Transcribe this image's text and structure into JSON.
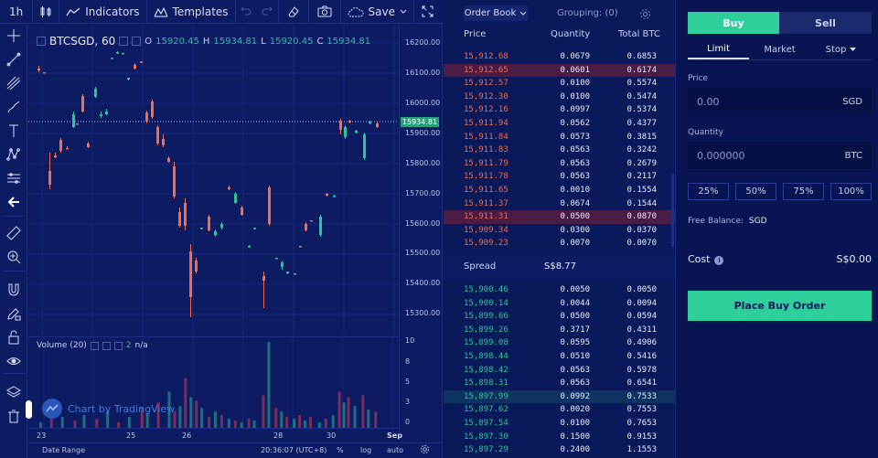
{
  "toolbar": {
    "interval": "1h",
    "indicators_label": "Indicators",
    "templates_label": "Templates",
    "save_label": "Save"
  },
  "legend": {
    "symbol": "BTCSGD, 60",
    "o_label": "O",
    "o": "15920.45",
    "h_label": "H",
    "h": "15934.81",
    "l_label": "L",
    "l": "15920.45",
    "c_label": "C",
    "c": "15934.81"
  },
  "volume_legend": {
    "label": "Volume (20)",
    "value": "2",
    "na": "n/a"
  },
  "price_axis": [
    "16200.00",
    "16100.00",
    "16000.00",
    "15900.00",
    "15800.00",
    "15700.00",
    "15600.00",
    "15500.00",
    "15400.00",
    "15300.00"
  ],
  "last_price_tag": "15934.81",
  "volume_axis": [
    "10",
    "8",
    "5",
    "3",
    "0"
  ],
  "time_axis": [
    "23",
    "25",
    "26",
    "28",
    "30",
    "Sep"
  ],
  "bottom_bar": {
    "date_range": "Date Range",
    "time": "20:36:07 (UTC+8)",
    "percent": "%",
    "log": "log",
    "auto": "auto"
  },
  "watermark": "Chart by TradingView",
  "chart_data": {
    "type": "candlestick",
    "x": [
      "23",
      "25",
      "26",
      "28",
      "30",
      "Sep"
    ],
    "ylim": [
      15250,
      16250
    ],
    "last": 15934.81
  },
  "orderbook": {
    "tab_active": "Order Book",
    "grouping": "Grouping: (0)",
    "head_price": "Price",
    "head_qty": "Quantity",
    "head_total": "Total BTC",
    "asks": [
      {
        "p": "15,912.68",
        "q": "0.0679",
        "t": "0.6853"
      },
      {
        "p": "15,912.65",
        "q": "0.0601",
        "t": "0.6174",
        "hl": true
      },
      {
        "p": "15,912.57",
        "q": "0.0100",
        "t": "0.5574"
      },
      {
        "p": "15,912.30",
        "q": "0.0100",
        "t": "0.5474"
      },
      {
        "p": "15,912.16",
        "q": "0.0997",
        "t": "0.5374"
      },
      {
        "p": "15,911.94",
        "q": "0.0562",
        "t": "0.4377"
      },
      {
        "p": "15,911.84",
        "q": "0.0573",
        "t": "0.3815"
      },
      {
        "p": "15,911.83",
        "q": "0.0563",
        "t": "0.3242"
      },
      {
        "p": "15,911.79",
        "q": "0.0563",
        "t": "0.2679"
      },
      {
        "p": "15,911.78",
        "q": "0.0563",
        "t": "0.2117"
      },
      {
        "p": "15,911.65",
        "q": "0.0010",
        "t": "0.1554"
      },
      {
        "p": "15,911.37",
        "q": "0.0674",
        "t": "0.1544"
      },
      {
        "p": "15,911.31",
        "q": "0.0500",
        "t": "0.0870",
        "hl": true
      },
      {
        "p": "15,909.34",
        "q": "0.0300",
        "t": "0.0370"
      },
      {
        "p": "15,909.23",
        "q": "0.0070",
        "t": "0.0070"
      }
    ],
    "spread_label": "Spread",
    "spread_value": "S$8.77",
    "bids": [
      {
        "p": "15,900.46",
        "q": "0.0050",
        "t": "0.0050"
      },
      {
        "p": "15,900.14",
        "q": "0.0044",
        "t": "0.0094"
      },
      {
        "p": "15,899.66",
        "q": "0.0500",
        "t": "0.0594"
      },
      {
        "p": "15,899.26",
        "q": "0.3717",
        "t": "0.4311"
      },
      {
        "p": "15,899.08",
        "q": "0.0595",
        "t": "0.4906"
      },
      {
        "p": "15,898.44",
        "q": "0.0510",
        "t": "0.5416"
      },
      {
        "p": "15,898.42",
        "q": "0.0563",
        "t": "0.5978"
      },
      {
        "p": "15,898.31",
        "q": "0.0563",
        "t": "0.6541"
      },
      {
        "p": "15,897.99",
        "q": "0.0992",
        "t": "0.7533",
        "hl": true
      },
      {
        "p": "15,897.62",
        "q": "0.0020",
        "t": "0.7553"
      },
      {
        "p": "15,897.54",
        "q": "0.0100",
        "t": "0.7653"
      },
      {
        "p": "15,897.30",
        "q": "0.1500",
        "t": "0.9153"
      },
      {
        "p": "15,897.29",
        "q": "0.2400",
        "t": "1.1553"
      }
    ]
  },
  "order_form": {
    "buy_label": "Buy",
    "sell_label": "Sell",
    "tab_limit": "Limit",
    "tab_market": "Market",
    "tab_stop": "Stop",
    "price_label": "Price",
    "price_placeholder": "0.00",
    "price_unit": "SGD",
    "qty_label": "Quantity",
    "qty_placeholder": "0.000000",
    "qty_unit": "BTC",
    "pct": [
      "25%",
      "50%",
      "75%",
      "100%"
    ],
    "free_balance_label": "Free Balance:",
    "free_balance_unit": "SGD",
    "cost_label": "Cost",
    "cost_value": "S$0.00",
    "place_label": "Place Buy Order"
  },
  "colors": {
    "buy": "#2fcf9c",
    "ask": "#f06c4c",
    "bid": "#27c79a",
    "bg": "#0b1a5a"
  }
}
